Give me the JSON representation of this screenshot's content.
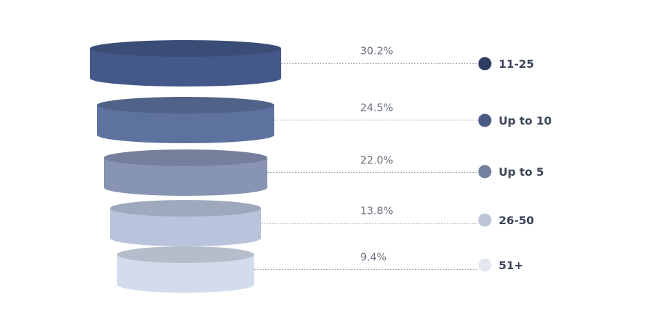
{
  "chart_data": {
    "type": "funnel",
    "title": "",
    "categories": [
      "11-25",
      "Up to 10",
      "Up to 5",
      "26-50",
      "51+"
    ],
    "values": [
      30.2,
      24.5,
      22.0,
      13.8,
      9.4
    ],
    "labels": [
      "30.2%",
      "24.5%",
      "22.0%",
      "13.8%",
      "9.4%"
    ],
    "colors": [
      "#44598a",
      "#5e729f",
      "#8894b4",
      "#b9c4dc",
      "#d3dcec"
    ],
    "legend_colors": [
      "#2f3d62",
      "#4a5a85",
      "#737f9e",
      "#bcc5d8",
      "#e3e7f1"
    ],
    "legend": "right"
  }
}
